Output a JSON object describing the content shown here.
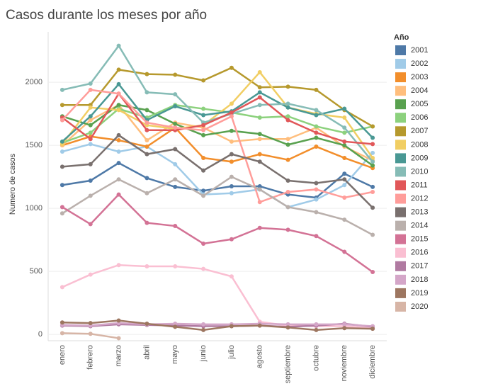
{
  "chart_data": {
    "type": "line",
    "title": "Casos durante los meses por año",
    "y_label": "Numero de casos",
    "legend_title": "Año",
    "legend_position": "right",
    "grid": true,
    "categories": [
      "enero",
      "febrero",
      "marzo",
      "abril",
      "mayo",
      "junio",
      "julio",
      "agosto",
      "septiembre",
      "octubre",
      "noviembre",
      "diciembre"
    ],
    "ylim": [
      -50,
      2400
    ],
    "yticks": [
      0,
      500,
      1000,
      1500,
      2000
    ],
    "series": [
      {
        "name": "2001",
        "color": "#4e79a7",
        "values": [
          1185,
          1220,
          1360,
          1240,
          1170,
          1140,
          1175,
          1175,
          1110,
          1085,
          1275,
          1170
        ]
      },
      {
        "name": "2002",
        "color": "#a0cbe8",
        "values": [
          1450,
          1510,
          1450,
          1490,
          1350,
          1110,
          1120,
          1150,
          1010,
          1070,
          1185,
          1440
        ]
      },
      {
        "name": "2003",
        "color": "#f28e2b",
        "values": [
          1500,
          1570,
          1540,
          1490,
          1640,
          1400,
          1370,
          1430,
          1385,
          1490,
          1400,
          1320
        ]
      },
      {
        "name": "2004",
        "color": "#ffbe7d",
        "values": [
          1500,
          1700,
          1820,
          1540,
          1680,
          1640,
          1530,
          1550,
          1550,
          1640,
          1490,
          1380
        ]
      },
      {
        "name": "2005",
        "color": "#59a14f",
        "values": [
          1730,
          1660,
          1820,
          1780,
          1670,
          1580,
          1615,
          1590,
          1505,
          1560,
          1500,
          1340
        ]
      },
      {
        "name": "2006",
        "color": "#8cd17d",
        "values": [
          1520,
          1600,
          1790,
          1720,
          1820,
          1790,
          1760,
          1720,
          1730,
          1650,
          1600,
          1650
        ]
      },
      {
        "name": "2007",
        "color": "#b6992d",
        "values": [
          1820,
          1820,
          2100,
          2065,
          2060,
          2015,
          2115,
          1960,
          1965,
          1940,
          1780,
          1650
        ]
      },
      {
        "name": "2008",
        "color": "#f1ce63",
        "values": [
          1510,
          1800,
          1780,
          1660,
          1630,
          1660,
          1830,
          2080,
          1800,
          1750,
          1720,
          1400
        ]
      },
      {
        "name": "2009",
        "color": "#499894",
        "values": [
          1530,
          1730,
          1985,
          1700,
          1810,
          1740,
          1770,
          1920,
          1800,
          1740,
          1790,
          1560
        ]
      },
      {
        "name": "2010",
        "color": "#86bcb6",
        "values": [
          1940,
          1990,
          2290,
          1920,
          1905,
          1680,
          1750,
          1820,
          1830,
          1780,
          1640,
          1370
        ]
      },
      {
        "name": "2011",
        "color": "#e15759",
        "values": [
          1720,
          1550,
          1910,
          1620,
          1620,
          1660,
          1760,
          1880,
          1700,
          1600,
          1530,
          1510
        ]
      },
      {
        "name": "2012",
        "color": "#ff9d9a",
        "values": [
          1700,
          1940,
          1910,
          1680,
          1640,
          1620,
          1730,
          1050,
          1130,
          1150,
          1085,
          1130
        ]
      },
      {
        "name": "2013",
        "color": "#79706e",
        "values": [
          1330,
          1350,
          1580,
          1430,
          1470,
          1300,
          1430,
          1370,
          1220,
          1200,
          1230,
          1005
        ]
      },
      {
        "name": "2014",
        "color": "#bab0ac",
        "values": [
          960,
          1100,
          1230,
          1120,
          1230,
          1100,
          1250,
          1150,
          1010,
          970,
          910,
          790
        ]
      },
      {
        "name": "2015",
        "color": "#d37295",
        "values": [
          1010,
          875,
          1110,
          885,
          860,
          720,
          755,
          845,
          830,
          780,
          655,
          495
        ]
      },
      {
        "name": "2016",
        "color": "#fabfd2",
        "values": [
          375,
          475,
          550,
          540,
          540,
          520,
          460,
          100,
          70,
          65,
          65,
          50
        ]
      },
      {
        "name": "2017",
        "color": "#b07aa1",
        "values": [
          70,
          65,
          80,
          75,
          70,
          65,
          65,
          70,
          60,
          70,
          85,
          60
        ]
      },
      {
        "name": "2018",
        "color": "#d4a6c8",
        "values": [
          75,
          70,
          90,
          80,
          85,
          80,
          80,
          85,
          80,
          80,
          80,
          65
        ]
      },
      {
        "name": "2019",
        "color": "#9d7660",
        "values": [
          95,
          90,
          110,
          85,
          60,
          35,
          65,
          70,
          55,
          35,
          50,
          45
        ]
      },
      {
        "name": "2020",
        "color": "#d7b5a6",
        "values": [
          10,
          5,
          -30,
          null,
          null,
          null,
          null,
          null,
          null,
          null,
          null,
          null
        ]
      }
    ]
  }
}
